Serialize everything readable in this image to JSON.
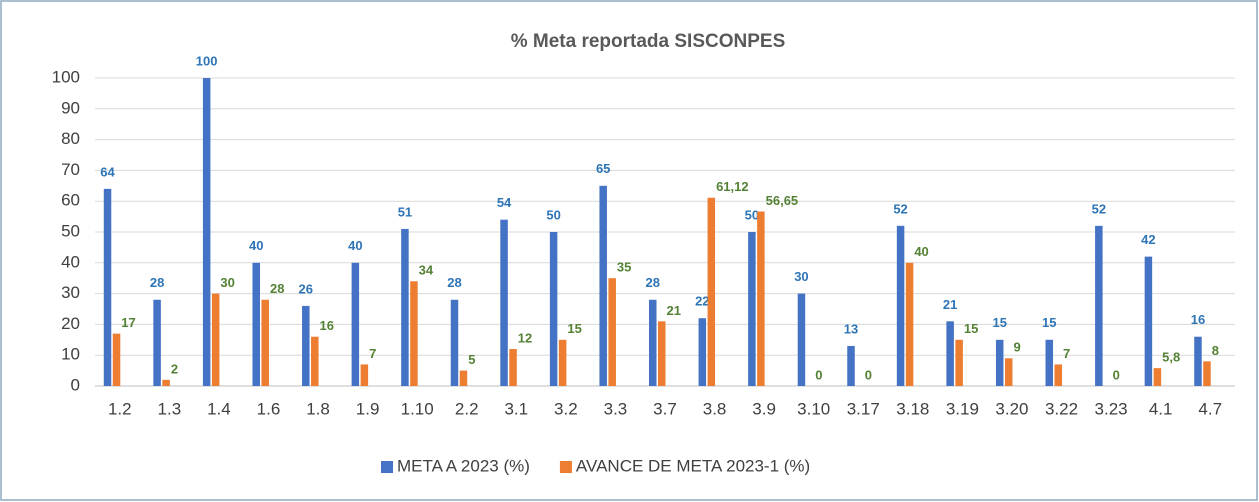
{
  "chart_data": {
    "type": "bar",
    "title": "% Meta reportada SISCONPES",
    "categories": [
      "1.2",
      "1.3",
      "1.4",
      "1.6",
      "1.8",
      "1.9",
      "1.10",
      "2.2",
      "3.1",
      "3.2",
      "3.3",
      "3.7",
      "3.8",
      "3.9",
      "3.10",
      "3.17",
      "3.18",
      "3.19",
      "3.20",
      "3.22",
      "3.23",
      "4.1",
      "4.7"
    ],
    "series": [
      {
        "name": "META A 2023 (%)",
        "color": "#4472c4",
        "label_color": "#2e75b6",
        "values": [
          64,
          28,
          100,
          40,
          26,
          40,
          51,
          28,
          54,
          50,
          65,
          28,
          22,
          50,
          30,
          13,
          52,
          21,
          15,
          15,
          52,
          42,
          16
        ]
      },
      {
        "name": "AVANCE DE META 2023-1 (%)",
        "color": "#ed7d31",
        "label_color": "#548235",
        "values": [
          17,
          2,
          30,
          28,
          16,
          7,
          34,
          5,
          12,
          15,
          35,
          21,
          61.12,
          56.65,
          0,
          0,
          40,
          15,
          9,
          7,
          0,
          5.8,
          8
        ],
        "value_labels": [
          "17",
          "2",
          "30",
          "28",
          "16",
          "7",
          "34",
          "5",
          "12",
          "15",
          "35",
          "21",
          "61,12",
          "56,65",
          "0",
          "0",
          "40",
          "15",
          "9",
          "7",
          "0",
          "5,8",
          "8"
        ]
      }
    ],
    "ylim": [
      0,
      100
    ],
    "yticks": [
      0,
      10,
      20,
      30,
      40,
      50,
      60,
      70,
      80,
      90,
      100
    ],
    "grid": true,
    "legend": "bottom"
  }
}
